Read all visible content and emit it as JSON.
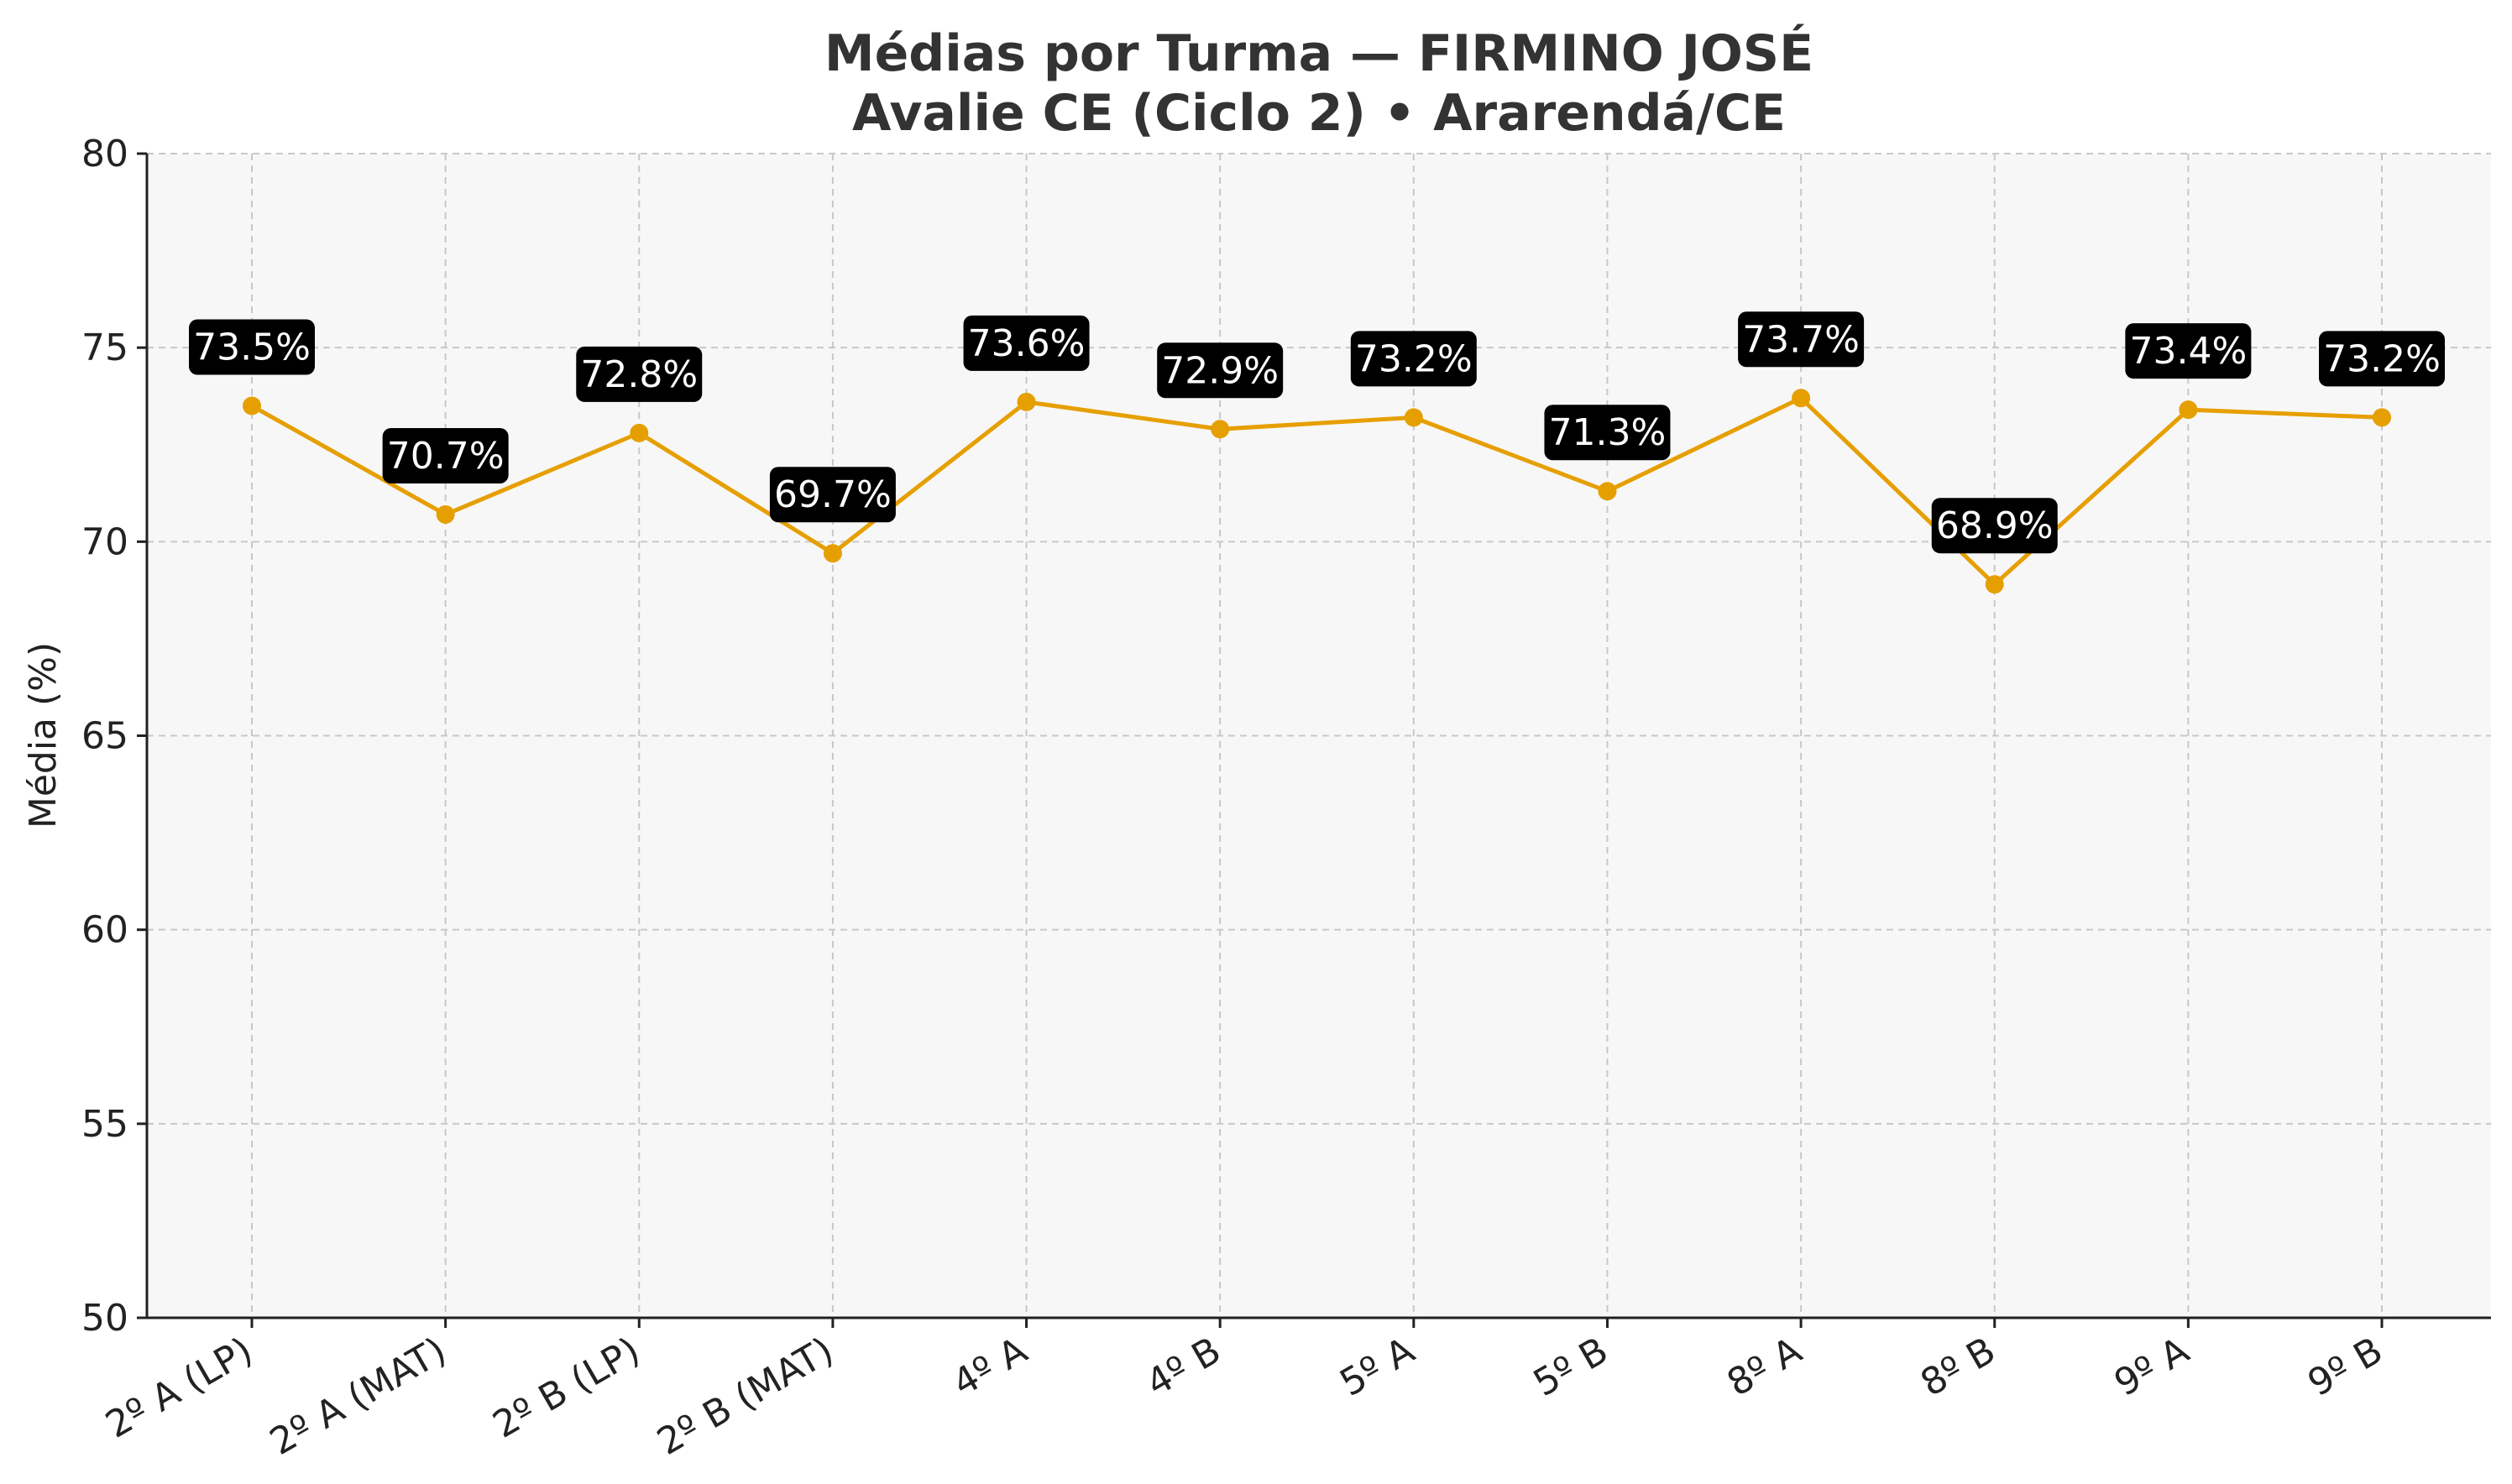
{
  "chart_data": {
    "type": "line",
    "title": "Médias por Turma — FIRMINO JOSÉ",
    "subtitle": "Avalie CE (Ciclo 2) • Ararendá/CE",
    "xlabel": "",
    "ylabel": "Média (%)",
    "ylim": [
      50,
      80
    ],
    "yticks": [
      "50",
      "55",
      "60",
      "65",
      "70",
      "75",
      "80"
    ],
    "categories": [
      "2º A (LP)",
      "2º A (MAT)",
      "2º B (LP)",
      "2º B (MAT)",
      "4º A",
      "4º B",
      "5º A",
      "5º B",
      "8º A",
      "8º B",
      "9º A",
      "9º B"
    ],
    "values": [
      73.5,
      70.7,
      72.8,
      69.7,
      73.6,
      72.9,
      73.2,
      71.3,
      73.7,
      68.9,
      73.4,
      73.2
    ],
    "data_labels": [
      "73.5%",
      "70.7%",
      "72.8%",
      "69.7%",
      "73.6%",
      "72.9%",
      "73.2%",
      "71.3%",
      "73.7%",
      "68.9%",
      "73.4%",
      "73.2%"
    ],
    "grid": true,
    "line_color": "#E69F00",
    "label_box_color": "#000000",
    "plot_background": "#F7F7F7"
  }
}
